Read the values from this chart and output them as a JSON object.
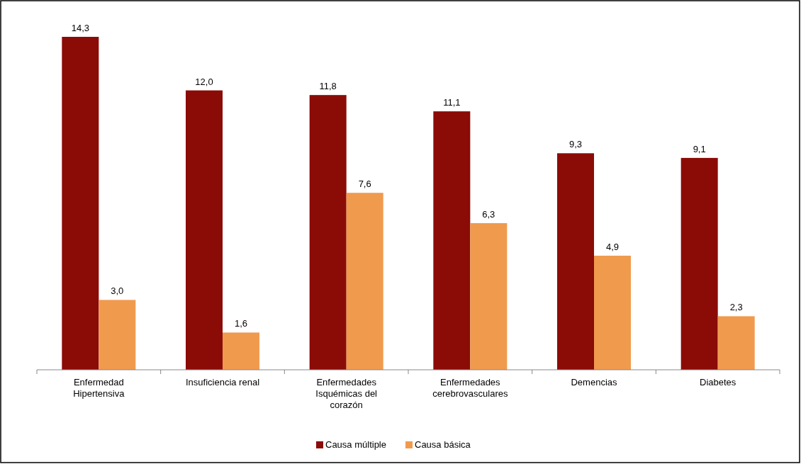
{
  "chart_data": {
    "type": "bar",
    "categories": [
      "Enfermedad Hipertensiva",
      "Insuficiencia renal",
      "Enfermedades Isquémicas del corazón",
      "Enfermedades cerebrovasculares",
      "Demencias",
      "Diabetes"
    ],
    "series": [
      {
        "name": "Causa múltiple",
        "color": "#8b0b07",
        "values": [
          14.3,
          12.0,
          11.8,
          11.1,
          9.3,
          9.1
        ],
        "value_labels": [
          "14,3",
          "12,0",
          "11,8",
          "11,1",
          "9,3",
          "9,1"
        ]
      },
      {
        "name": "Causa básica",
        "color": "#f09a4e",
        "values": [
          3.0,
          1.6,
          7.6,
          6.3,
          4.9,
          2.3
        ],
        "value_labels": [
          "3,0",
          "1,6",
          "7,6",
          "6,3",
          "4,9",
          "2,3"
        ]
      }
    ],
    "legend": "bottom"
  }
}
